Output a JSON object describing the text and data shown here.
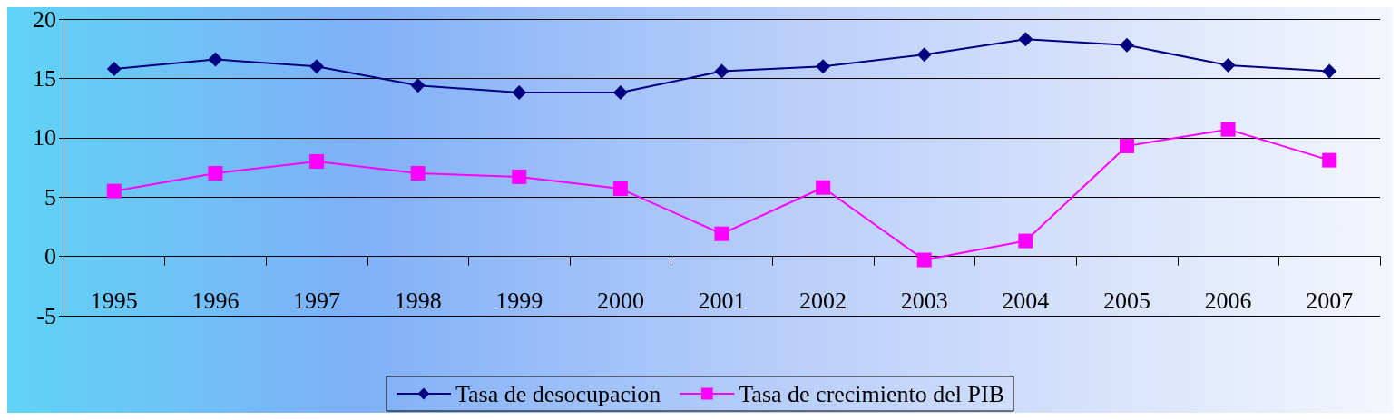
{
  "chart_data": {
    "type": "line",
    "categories": [
      "1995",
      "1996",
      "1997",
      "1998",
      "1999",
      "2000",
      "2001",
      "2002",
      "2003",
      "2004",
      "2005",
      "2006",
      "2007"
    ],
    "series": [
      {
        "name": "Tasa de desocupacion",
        "color": "#000080",
        "marker": "diamond",
        "values": [
          15.8,
          16.6,
          16.0,
          14.4,
          13.8,
          13.8,
          15.6,
          16.0,
          17.0,
          18.3,
          17.8,
          16.1,
          15.6
        ]
      },
      {
        "name": "Tasa de crecimiento del PIB",
        "color": "#ff00ff",
        "marker": "square",
        "values": [
          5.5,
          7.0,
          8.0,
          7.0,
          6.7,
          5.7,
          1.9,
          5.8,
          -0.3,
          1.3,
          9.3,
          10.7,
          8.1
        ]
      }
    ],
    "ylim": [
      -5,
      20
    ],
    "yticks": [
      -5,
      0,
      5,
      10,
      15,
      20
    ],
    "grid": "y",
    "legend": "bottom",
    "line_style": "solid"
  }
}
